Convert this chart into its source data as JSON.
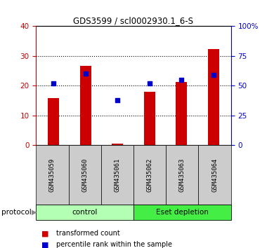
{
  "title": "GDS3599 / scl0002930.1_6-S",
  "samples": [
    "GSM435059",
    "GSM435060",
    "GSM435061",
    "GSM435062",
    "GSM435063",
    "GSM435064"
  ],
  "red_bars": [
    15.8,
    26.7,
    0.5,
    18.0,
    21.2,
    32.2
  ],
  "blue_dots": [
    52,
    60,
    38,
    52,
    55,
    59
  ],
  "left_ylim": [
    0,
    40
  ],
  "right_ylim": [
    0,
    100
  ],
  "left_yticks": [
    0,
    10,
    20,
    30,
    40
  ],
  "right_yticks": [
    0,
    25,
    50,
    75,
    100
  ],
  "right_yticklabels": [
    "0",
    "25",
    "50",
    "75",
    "100%"
  ],
  "groups": [
    {
      "label": "control",
      "n": 3,
      "color": "#aaffaa"
    },
    {
      "label": "Eset depletion",
      "n": 3,
      "color": "#44dd44"
    }
  ],
  "bar_color": "#cc0000",
  "dot_color": "#0000cc",
  "bar_width": 0.35,
  "legend_items": [
    {
      "label": "transformed count",
      "color": "#cc0000"
    },
    {
      "label": "percentile rank within the sample",
      "color": "#0000cc"
    }
  ],
  "protocol_label": "protocol",
  "left_axis_color": "#cc0000",
  "right_axis_color": "#0000cc",
  "tick_area_color": "#cccccc",
  "ctrl_green": "#b3ffb3",
  "eset_green": "#44ee44"
}
